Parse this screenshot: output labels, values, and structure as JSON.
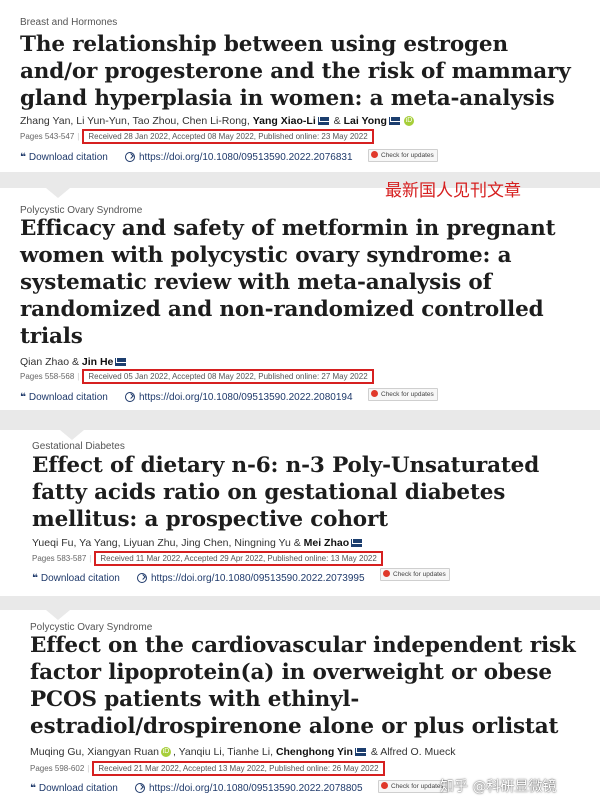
{
  "overlay_note": "最新国人见刊文章",
  "watermark": "知乎 @科研显微镜",
  "download_citation_label": "Download citation",
  "check_updates_label": "Check for updates",
  "articles": [
    {
      "category": "Breast and Hormones",
      "title": "The relationship between using estrogen and/or progesterone and the risk of mammary gland hyperplasia in women: a meta-analysis",
      "authors": "Zhang Yan, Li Yun-Yun, Tao Zhou, Chen Li-Rong, ",
      "corresponding": "Yang Xiao-Li",
      "amp": " & ",
      "last_author": "Lai Yong",
      "pages": "Pages 543-547",
      "dates": "Received 28 Jan 2022, Accepted 08 May 2022, Published online: 23 May 2022",
      "doi": "https://doi.org/10.1080/09513590.2022.2076831"
    },
    {
      "category": "Polycystic Ovary Syndrome",
      "title": "Efficacy and safety of metformin in pregnant women with polycystic ovary syndrome: a systematic review with meta-analysis of randomized and non-randomized controlled trials",
      "authors": "Qian Zhao & ",
      "corresponding": "Jin He",
      "pages": "Pages 558-568",
      "dates": "Received 05 Jan 2022, Accepted 08 May 2022, Published online: 27 May 2022",
      "doi": "https://doi.org/10.1080/09513590.2022.2080194"
    },
    {
      "category": "Gestational Diabetes",
      "title": "Effect of dietary n-6: n-3 Poly-Unsaturated fatty acids ratio on gestational diabetes mellitus: a prospective cohort",
      "authors": "Yueqi Fu, Ya Yang, Liyuan Zhu, Jing Chen, Ningning Yu & ",
      "corresponding": "Mei Zhao",
      "pages": "Pages 583-587",
      "dates": "Received 11 Mar 2022, Accepted 29 Apr 2022, Published online: 13 May 2022",
      "doi": "https://doi.org/10.1080/09513590.2022.2073995"
    },
    {
      "category": "Polycystic Ovary Syndrome",
      "title": "Effect on the cardiovascular independent risk factor lipoprotein(a) in overweight or obese PCOS patients with ethinyl-estradiol/drospirenone alone or plus orlistat",
      "authors": "Muqing Gu, Xiangyan Ruan",
      "authors_2": ", Yanqiu Li, Tianhe Li, ",
      "corresponding": "Chenghong Yin",
      "amp": " & ",
      "last_author": "Alfred O. Mueck",
      "pages": "Pages 598-602",
      "dates": "Received 21 Mar 2022, Accepted 13 May 2022, Published online: 26 May 2022",
      "doi": "https://doi.org/10.1080/09513590.2022.2078805"
    }
  ]
}
